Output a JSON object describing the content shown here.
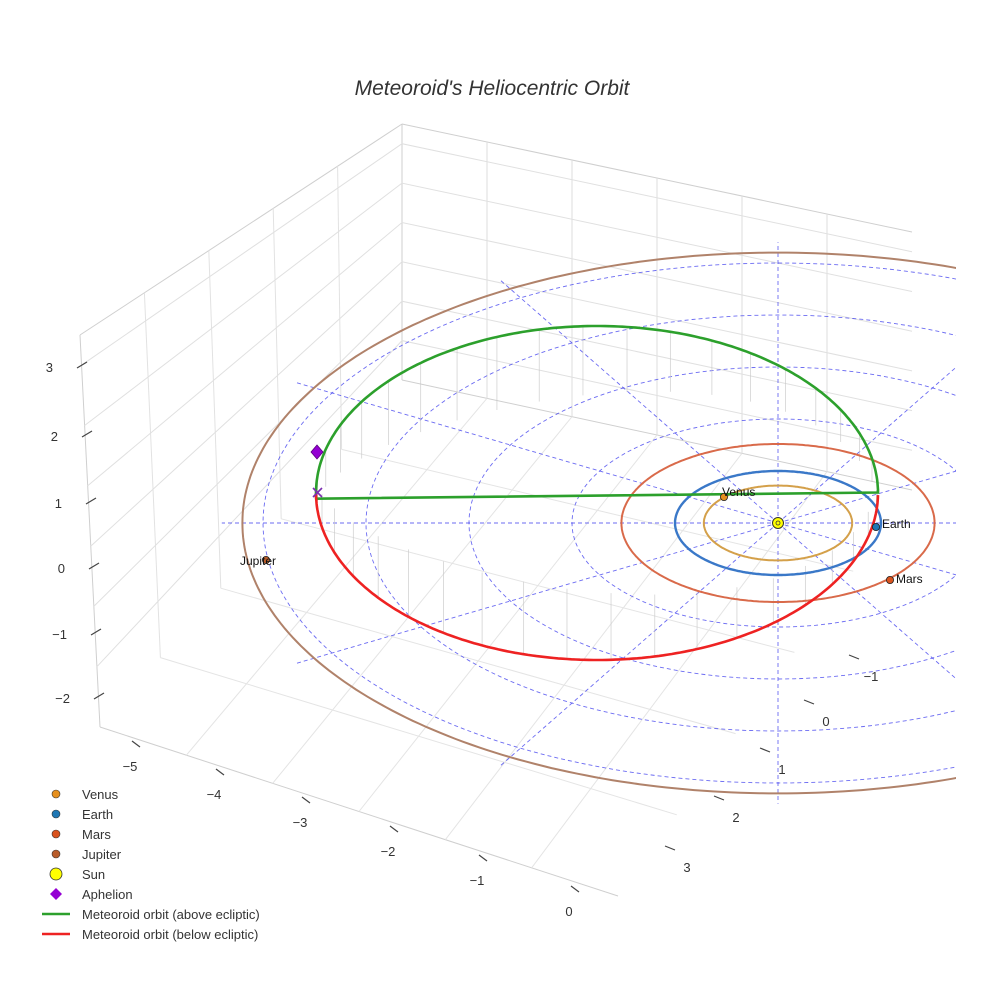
{
  "chart_data": {
    "type": "scatter3d",
    "title": "Meteoroid's Heliocentric Orbit",
    "axes": {
      "x_ticks": [
        -1,
        0,
        1,
        2,
        3
      ],
      "y_ticks": [
        -5,
        -4,
        -3,
        -2,
        -1,
        0
      ],
      "z_ticks": [
        3,
        2,
        1,
        0,
        -1,
        -2
      ],
      "tick_labels": {
        "x": [
          "−1",
          "0",
          "1",
          "2",
          "3"
        ],
        "y": [
          "−5",
          "−4",
          "−3",
          "−2",
          "−1",
          "0"
        ],
        "z": [
          "3",
          "2",
          "1",
          "0",
          "−1",
          "−2"
        ]
      },
      "grid": true
    },
    "planets": [
      {
        "name": "Venus",
        "label": "Venus",
        "orbit_radius_au": 0.72,
        "color": "#d4a04a",
        "marker_color": "#e6901e"
      },
      {
        "name": "Earth",
        "label": "Earth",
        "orbit_radius_au": 1.0,
        "color": "#3a78c8",
        "marker_color": "#1f77b4"
      },
      {
        "name": "Mars",
        "label": "Mars",
        "orbit_radius_au": 1.52,
        "color": "#d96a4a",
        "marker_color": "#d9531e"
      },
      {
        "name": "Jupiter",
        "label": "Jupiter",
        "orbit_radius_au": 5.2,
        "color": "#b0826a",
        "marker_color": "#b85c2a"
      }
    ],
    "sun": {
      "name": "Sun",
      "color": "#ffff00"
    },
    "aphelion": {
      "name": "Aphelion",
      "color": "#9400d3",
      "z": 1.6
    },
    "meteoroid_orbit": {
      "above": {
        "name": "Meteoroid orbit (above ecliptic)",
        "color": "#2ca02c"
      },
      "below": {
        "name": "Meteoroid orbit (below ecliptic)",
        "color": "#ee2222"
      }
    },
    "ecliptic_grid": {
      "rings_au": [
        1,
        2,
        3,
        4,
        5
      ],
      "spokes": 12,
      "color": "#3a3aee"
    },
    "legend": {
      "position": "bottom-left",
      "entries": [
        {
          "label": "Venus",
          "kind": "dot",
          "color": "#e6901e"
        },
        {
          "label": "Earth",
          "kind": "dot",
          "color": "#1f77b4"
        },
        {
          "label": "Mars",
          "kind": "dot",
          "color": "#d9531e"
        },
        {
          "label": "Jupiter",
          "kind": "dot",
          "color": "#b85c2a"
        },
        {
          "label": "Sun",
          "kind": "sun",
          "color": "#ffff00"
        },
        {
          "label": "Aphelion",
          "kind": "diamond",
          "color": "#9400d3"
        },
        {
          "label": "Meteoroid orbit (above ecliptic)",
          "kind": "line",
          "color": "#2ca02c"
        },
        {
          "label": "Meteoroid orbit (below ecliptic)",
          "kind": "line",
          "color": "#ee2222"
        }
      ]
    }
  }
}
